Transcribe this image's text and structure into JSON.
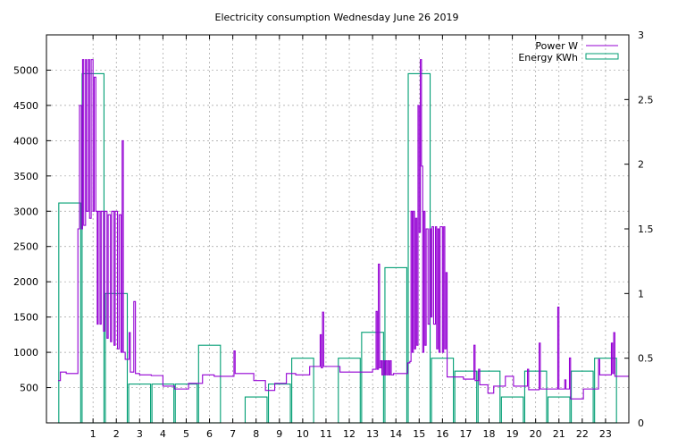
{
  "chart_data": {
    "type": "bar",
    "title": "Electricity consumption Wednesday June 26 2019",
    "xlim": [
      -1,
      24
    ],
    "y1lim": [
      0,
      5500
    ],
    "y2lim": [
      0,
      3
    ],
    "x_ticks": [
      "1",
      "2",
      "3",
      "4",
      "5",
      "6",
      "7",
      "8",
      "9",
      "10",
      "11",
      "12",
      "13",
      "14",
      "15",
      "16",
      "17",
      "18",
      "19",
      "20",
      "21",
      "22",
      "23"
    ],
    "y1_ticks": [
      "500",
      "1000",
      "1500",
      "2000",
      "2500",
      "3000",
      "3500",
      "4000",
      "4500",
      "5000"
    ],
    "y2_ticks": [
      "0",
      "0.5",
      "1",
      "1.5",
      "2",
      "2.5",
      "3"
    ],
    "grid": true,
    "legend_position": "top-right",
    "colors": {
      "power": "#9400d3",
      "energy": "#009e73",
      "grid": "#a0a0a0",
      "axis": "#000000"
    },
    "series": [
      {
        "name": "Power W",
        "kind": "line",
        "axis": "y1",
        "points": [
          [
            -0.5,
            600
          ],
          [
            -0.4,
            720
          ],
          [
            -0.15,
            700
          ],
          [
            0.25,
            700
          ],
          [
            0.35,
            2750
          ],
          [
            0.42,
            4500
          ],
          [
            0.5,
            2750
          ],
          [
            0.55,
            5150
          ],
          [
            0.6,
            2800
          ],
          [
            0.68,
            5150
          ],
          [
            0.72,
            3000
          ],
          [
            0.8,
            5150
          ],
          [
            0.85,
            2900
          ],
          [
            0.92,
            5150
          ],
          [
            1.0,
            3000
          ],
          [
            1.05,
            4900
          ],
          [
            1.12,
            3000
          ],
          [
            1.18,
            1400
          ],
          [
            1.22,
            3000
          ],
          [
            1.3,
            1400
          ],
          [
            1.35,
            3000
          ],
          [
            1.45,
            1300
          ],
          [
            1.5,
            3000
          ],
          [
            1.6,
            1200
          ],
          [
            1.65,
            2950
          ],
          [
            1.75,
            1150
          ],
          [
            1.8,
            3000
          ],
          [
            1.9,
            1100
          ],
          [
            1.95,
            3000
          ],
          [
            2.05,
            1050
          ],
          [
            2.12,
            2950
          ],
          [
            2.2,
            1000
          ],
          [
            2.25,
            4000
          ],
          [
            2.3,
            1000
          ],
          [
            2.38,
            900
          ],
          [
            2.5,
            900
          ],
          [
            2.55,
            1280
          ],
          [
            2.6,
            720
          ],
          [
            2.7,
            720
          ],
          [
            2.75,
            1720
          ],
          [
            2.82,
            700
          ],
          [
            3.0,
            680
          ],
          [
            3.3,
            680
          ],
          [
            3.5,
            670
          ],
          [
            3.9,
            670
          ],
          [
            4.0,
            520
          ],
          [
            4.4,
            520
          ],
          [
            4.5,
            480
          ],
          [
            5.0,
            480
          ],
          [
            5.1,
            560
          ],
          [
            5.6,
            560
          ],
          [
            5.7,
            680
          ],
          [
            6.1,
            680
          ],
          [
            6.2,
            660
          ],
          [
            7.0,
            660
          ],
          [
            7.05,
            1020
          ],
          [
            7.1,
            700
          ],
          [
            7.8,
            700
          ],
          [
            7.9,
            600
          ],
          [
            8.3,
            600
          ],
          [
            8.4,
            460
          ],
          [
            8.7,
            460
          ],
          [
            8.8,
            560
          ],
          [
            9.2,
            560
          ],
          [
            9.3,
            700
          ],
          [
            9.6,
            700
          ],
          [
            9.7,
            680
          ],
          [
            10.2,
            680
          ],
          [
            10.3,
            800
          ],
          [
            10.7,
            800
          ],
          [
            10.75,
            1250
          ],
          [
            10.8,
            780
          ],
          [
            10.85,
            1570
          ],
          [
            10.9,
            800
          ],
          [
            11.5,
            800
          ],
          [
            11.6,
            720
          ],
          [
            12.9,
            720
          ],
          [
            13.0,
            760
          ],
          [
            13.1,
            760
          ],
          [
            13.15,
            1580
          ],
          [
            13.2,
            760
          ],
          [
            13.25,
            2250
          ],
          [
            13.3,
            780
          ],
          [
            13.35,
            880
          ],
          [
            13.4,
            680
          ],
          [
            13.45,
            880
          ],
          [
            13.5,
            680
          ],
          [
            13.55,
            880
          ],
          [
            13.6,
            680
          ],
          [
            13.65,
            880
          ],
          [
            13.7,
            680
          ],
          [
            13.75,
            880
          ],
          [
            13.8,
            680
          ],
          [
            13.9,
            700
          ],
          [
            14.4,
            700
          ],
          [
            14.5,
            850
          ],
          [
            14.6,
            870
          ],
          [
            14.65,
            3000
          ],
          [
            14.7,
            1000
          ],
          [
            14.75,
            3000
          ],
          [
            14.8,
            1050
          ],
          [
            14.85,
            2900
          ],
          [
            14.9,
            1100
          ],
          [
            14.95,
            4500
          ],
          [
            15.0,
            2700
          ],
          [
            15.05,
            5150
          ],
          [
            15.1,
            3640
          ],
          [
            15.15,
            1000
          ],
          [
            15.2,
            3000
          ],
          [
            15.25,
            1100
          ],
          [
            15.3,
            2750
          ],
          [
            15.38,
            1400
          ],
          [
            15.45,
            2750
          ],
          [
            15.5,
            1500
          ],
          [
            15.55,
            2780
          ],
          [
            15.62,
            1400
          ],
          [
            15.7,
            2780
          ],
          [
            15.75,
            1050
          ],
          [
            15.8,
            2750
          ],
          [
            15.85,
            1000
          ],
          [
            15.9,
            2780
          ],
          [
            16.0,
            1000
          ],
          [
            16.05,
            2780
          ],
          [
            16.1,
            1050
          ],
          [
            16.15,
            2130
          ],
          [
            16.2,
            650
          ],
          [
            16.8,
            650
          ],
          [
            16.9,
            620
          ],
          [
            17.3,
            620
          ],
          [
            17.35,
            1100
          ],
          [
            17.4,
            600
          ],
          [
            17.5,
            600
          ],
          [
            17.55,
            760
          ],
          [
            17.6,
            540
          ],
          [
            17.9,
            540
          ],
          [
            17.95,
            420
          ],
          [
            18.1,
            420
          ],
          [
            18.2,
            520
          ],
          [
            18.6,
            520
          ],
          [
            18.7,
            660
          ],
          [
            19.0,
            660
          ],
          [
            19.05,
            520
          ],
          [
            19.6,
            520
          ],
          [
            19.65,
            760
          ],
          [
            19.7,
            470
          ],
          [
            20.1,
            470
          ],
          [
            20.15,
            1130
          ],
          [
            20.2,
            480
          ],
          [
            20.9,
            480
          ],
          [
            20.95,
            1640
          ],
          [
            21.0,
            480
          ],
          [
            21.2,
            480
          ],
          [
            21.25,
            610
          ],
          [
            21.3,
            480
          ],
          [
            21.4,
            480
          ],
          [
            21.45,
            920
          ],
          [
            21.5,
            340
          ],
          [
            22.0,
            340
          ],
          [
            22.05,
            480
          ],
          [
            22.6,
            480
          ],
          [
            22.7,
            900
          ],
          [
            22.75,
            680
          ],
          [
            23.2,
            680
          ],
          [
            23.25,
            1130
          ],
          [
            23.3,
            700
          ],
          [
            23.35,
            1280
          ],
          [
            23.4,
            660
          ],
          [
            24.0,
            660
          ]
        ]
      },
      {
        "name": "Energy KWh",
        "kind": "bar",
        "axis": "y2",
        "bars": [
          [
            0,
            1.7
          ],
          [
            1,
            2.7
          ],
          [
            2,
            1.0
          ],
          [
            3,
            0.3
          ],
          [
            4,
            0.3
          ],
          [
            5,
            0.3
          ],
          [
            6,
            0.6
          ],
          [
            7,
            0.0
          ],
          [
            8,
            0.2
          ],
          [
            9,
            0.3
          ],
          [
            10,
            0.5
          ],
          [
            11,
            0.0
          ],
          [
            12,
            0.5
          ],
          [
            13,
            0.7
          ],
          [
            14,
            1.2
          ],
          [
            15,
            2.7
          ],
          [
            16,
            0.5
          ],
          [
            17,
            0.4
          ],
          [
            18,
            0.4
          ],
          [
            19,
            0.2
          ],
          [
            20,
            0.4
          ],
          [
            21,
            0.2
          ],
          [
            22,
            0.4
          ],
          [
            23,
            0.5
          ]
        ]
      }
    ]
  }
}
